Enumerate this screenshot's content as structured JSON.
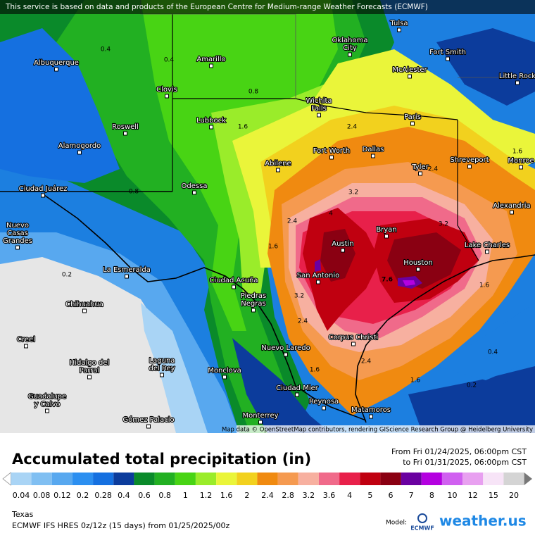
{
  "banner": "This service is based on data and products of the European Centre for Medium-range Weather Forecasts (ECMWF)",
  "map": {
    "cities": [
      {
        "label": [
          "Tulsa"
        ]
      },
      {
        "label": [
          "Oklahoma",
          "City"
        ]
      },
      {
        "label": [
          "Fort Smith"
        ]
      },
      {
        "label": [
          "Albuquerque"
        ]
      },
      {
        "label": [
          "Amarillo"
        ]
      },
      {
        "label": [
          "McAlester"
        ]
      },
      {
        "label": [
          "Little Rock"
        ]
      },
      {
        "label": [
          "Clovis"
        ]
      },
      {
        "label": [
          "Wichita",
          "Falls"
        ]
      },
      {
        "label": [
          "Lubbock"
        ]
      },
      {
        "label": [
          "Paris"
        ]
      },
      {
        "label": [
          "Roswell"
        ]
      },
      {
        "label": [
          "Alamogordo"
        ]
      },
      {
        "label": [
          "Fort Worth"
        ]
      },
      {
        "label": [
          "Dallas"
        ]
      },
      {
        "label": [
          "Abilene"
        ]
      },
      {
        "label": [
          "Shreveport"
        ]
      },
      {
        "label": [
          "Monroe"
        ]
      },
      {
        "label": [
          "Tyler"
        ]
      },
      {
        "label": [
          "Ciudad Juárez"
        ]
      },
      {
        "label": [
          "Odessa"
        ]
      },
      {
        "label": [
          "Alexandria"
        ]
      },
      {
        "label": [
          "Nuevo",
          "Casas",
          "Grandes"
        ]
      },
      {
        "label": [
          "Bryan"
        ]
      },
      {
        "label": [
          "Austin"
        ]
      },
      {
        "label": [
          "Lake Charles"
        ]
      },
      {
        "label": [
          "Houston"
        ]
      },
      {
        "label": [
          "La Esmeralda"
        ]
      },
      {
        "label": [
          "San Antonio"
        ]
      },
      {
        "label": [
          "Ciudad Acuña"
        ]
      },
      {
        "label": [
          "Piedras",
          "Negras"
        ]
      },
      {
        "label": [
          "Chihuahua"
        ]
      },
      {
        "label": [
          "Corpus Christi"
        ]
      },
      {
        "label": [
          "Creel"
        ]
      },
      {
        "label": [
          "Nuevo Laredo"
        ]
      },
      {
        "label": [
          "Hidalgo del",
          "Parral"
        ]
      },
      {
        "label": [
          "Laguna",
          "del Rey"
        ]
      },
      {
        "label": [
          "Monclova"
        ]
      },
      {
        "label": [
          "Ciudad Mier"
        ]
      },
      {
        "label": [
          "Guadalupe",
          "y Calvo"
        ]
      },
      {
        "label": [
          "Reynosa"
        ]
      },
      {
        "label": [
          "Matamoros"
        ]
      },
      {
        "label": [
          "Monterrey"
        ]
      },
      {
        "label": [
          "Gómez Palacio"
        ]
      }
    ],
    "contour_labels": [
      "7.6",
      "0.4",
      "0.8",
      "1.6",
      "2.4",
      "3.2",
      "4",
      "2.4",
      "1.6",
      "3.2",
      "2.4",
      "1.6",
      "2.4",
      "1.6",
      "1.6",
      "0.4",
      "0.2",
      "0.2",
      "0.8",
      "0.4",
      "1.6",
      "3.2",
      "2.4"
    ],
    "attribution": "Map data © OpenStreetMap contributors, rendering GIScience Research Group @ Heidelberg University"
  },
  "title": "Accumulated total precipitation (in)",
  "period": {
    "from": "From Fri 01/24/2025, 06:00pm CST",
    "to": "to Fri 01/31/2025, 06:00pm CST"
  },
  "legend": {
    "values": [
      0.04,
      0.08,
      0.12,
      0.2,
      0.28,
      0.4,
      0.6,
      0.8,
      1,
      1.2,
      1.6,
      2,
      2.4,
      2.8,
      3.2,
      3.6,
      4,
      5,
      6,
      7,
      8,
      10,
      12,
      15,
      20
    ],
    "colors": [
      "#a9d4f5",
      "#80bff2",
      "#58a8ef",
      "#2c8ff0",
      "#1570e0",
      "#0c3c9c",
      "#0a8a2a",
      "#22b022",
      "#48d414",
      "#9aec2a",
      "#eaf53a",
      "#f2d11e",
      "#f08a10",
      "#f59a50",
      "#f7b0a0",
      "#f06a8a",
      "#e8204a",
      "#c00010",
      "#8a0012",
      "#6a00a0",
      "#b400e0",
      "#d060f0",
      "#e8a0f0",
      "#f7e4f7",
      "#d4d4d4"
    ]
  },
  "region": "Texas",
  "model_run": "ECMWF IFS HRES 0z/12z (15 days) from 01/25/2025/00z",
  "model_label": "Model:",
  "model_logo": "ECMWF",
  "brand": "weather.us"
}
